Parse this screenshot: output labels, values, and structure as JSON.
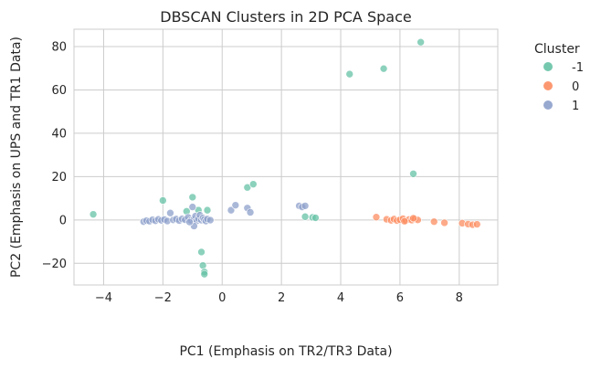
{
  "chart_data": {
    "type": "scatter",
    "title": "DBSCAN Clusters in 2D PCA Space",
    "xlabel": "PC1 (Emphasis on TR2/TR3 Data)",
    "ylabel": "PC2 (Emphasis on UPS and TR1 Data)",
    "xlim": [
      -5.0,
      9.3
    ],
    "ylim": [
      -30,
      88
    ],
    "xticks": [
      -4,
      -2,
      0,
      2,
      4,
      6,
      8
    ],
    "yticks": [
      -20,
      0,
      20,
      40,
      60,
      80
    ],
    "xtick_labels": [
      "−4",
      "−2",
      "0",
      "2",
      "4",
      "6",
      "8"
    ],
    "ytick_labels": [
      "−20",
      "0",
      "20",
      "40",
      "60",
      "80"
    ],
    "grid": true,
    "legend": {
      "title": "Cluster",
      "placement": "outside right"
    },
    "series": [
      {
        "name": "-1",
        "color": "#66c2a5",
        "points": [
          [
            -4.35,
            2.6
          ],
          [
            -2.0,
            9.0
          ],
          [
            -1.0,
            10.5
          ],
          [
            -1.2,
            4.0
          ],
          [
            -0.8,
            4.5
          ],
          [
            -0.5,
            4.5
          ],
          [
            -0.7,
            -14.8
          ],
          [
            -0.65,
            -21.0
          ],
          [
            -0.6,
            -24.0
          ],
          [
            -0.6,
            -25.0
          ],
          [
            0.85,
            15.0
          ],
          [
            1.05,
            16.5
          ],
          [
            2.8,
            1.5
          ],
          [
            3.05,
            1.2
          ],
          [
            3.15,
            1.0
          ],
          [
            4.3,
            67.3
          ],
          [
            5.45,
            69.8
          ],
          [
            6.45,
            21.3
          ],
          [
            6.7,
            82.0
          ]
        ]
      },
      {
        "name": "0",
        "color": "#fc8d62",
        "points": [
          [
            5.2,
            1.3
          ],
          [
            5.55,
            0.3
          ],
          [
            5.7,
            -0.2
          ],
          [
            5.8,
            0.4
          ],
          [
            5.9,
            -0.3
          ],
          [
            6.0,
            0.1
          ],
          [
            6.1,
            0.6
          ],
          [
            6.2,
            -0.4
          ],
          [
            6.3,
            0.2
          ],
          [
            6.4,
            -0.1
          ],
          [
            6.5,
            0.5
          ],
          [
            6.6,
            0.0
          ],
          [
            6.45,
            0.8
          ],
          [
            6.15,
            -0.6
          ],
          [
            7.15,
            -0.8
          ],
          [
            7.5,
            -1.3
          ],
          [
            8.1,
            -1.5
          ],
          [
            8.3,
            -1.9
          ],
          [
            8.45,
            -2.2
          ],
          [
            8.6,
            -2.0
          ]
        ]
      },
      {
        "name": "1",
        "color": "#8da0cb",
        "points": [
          [
            -2.65,
            -0.8
          ],
          [
            -2.55,
            -0.3
          ],
          [
            -2.45,
            -0.6
          ],
          [
            -2.35,
            0.1
          ],
          [
            -2.25,
            -0.4
          ],
          [
            -2.15,
            0.3
          ],
          [
            -2.05,
            -0.2
          ],
          [
            -1.95,
            0.2
          ],
          [
            -1.85,
            -0.5
          ],
          [
            -1.75,
            3.2
          ],
          [
            -1.65,
            0.0
          ],
          [
            -1.55,
            0.4
          ],
          [
            -1.45,
            -0.3
          ],
          [
            -1.35,
            0.5
          ],
          [
            -1.25,
            0.1
          ],
          [
            -1.15,
            1.2
          ],
          [
            -1.05,
            -0.2
          ],
          [
            -1.0,
            6.0
          ],
          [
            -0.95,
            0.3
          ],
          [
            -0.9,
            1.8
          ],
          [
            -0.85,
            -0.4
          ],
          [
            -0.8,
            0.6
          ],
          [
            -0.75,
            2.2
          ],
          [
            -0.7,
            -0.1
          ],
          [
            -0.65,
            0.9
          ],
          [
            -0.6,
            0.2
          ],
          [
            -0.55,
            -0.5
          ],
          [
            -0.5,
            0.4
          ],
          [
            -0.4,
            -0.1
          ],
          [
            -0.95,
            -2.8
          ],
          [
            -1.1,
            -1.0
          ],
          [
            0.3,
            4.5
          ],
          [
            0.45,
            6.8
          ],
          [
            0.85,
            5.5
          ],
          [
            0.95,
            3.5
          ],
          [
            2.6,
            6.5
          ],
          [
            2.7,
            6.0
          ],
          [
            2.8,
            6.5
          ]
        ]
      }
    ]
  }
}
